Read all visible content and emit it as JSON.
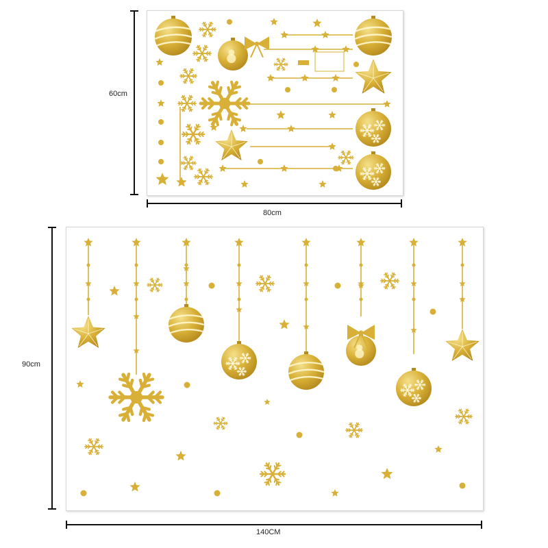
{
  "colors": {
    "gold": "#d8b037",
    "gold_light": "#f5e08a",
    "gold_dark": "#b58a1e",
    "line": "#111111",
    "sheet_border": "#d6d6d6"
  },
  "icons": [
    "star-icon",
    "snowflake-icon",
    "bauble-icon",
    "bow-icon"
  ],
  "top_sheet": {
    "height_label": "60cm",
    "width_label": "80cm",
    "decorations": [
      "ornament-balls",
      "snowflakes",
      "stars",
      "bow",
      "dots",
      "hanging-lines"
    ]
  },
  "bottom_sheet": {
    "height_label": "90cm",
    "width_label": "140CM",
    "decorations": [
      "hanging-stars",
      "hanging-balls",
      "snowflakes",
      "stars",
      "dots"
    ]
  }
}
